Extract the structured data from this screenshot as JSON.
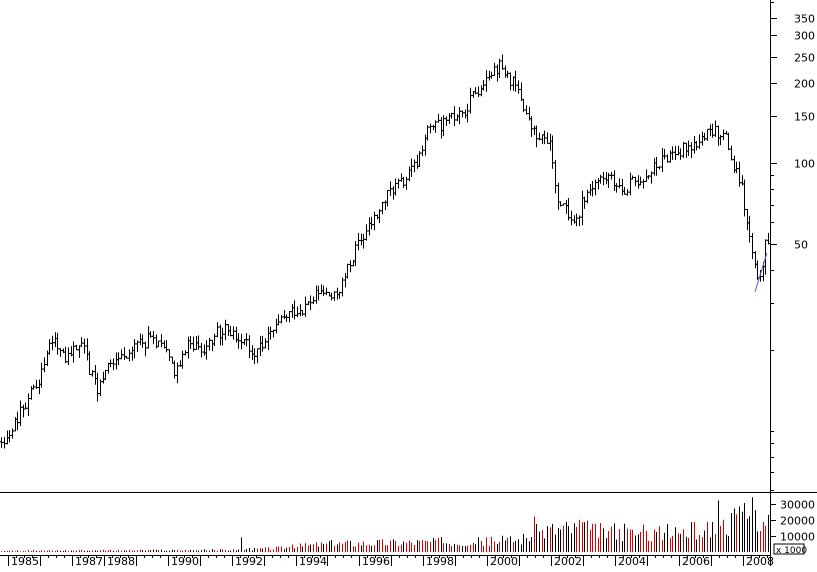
{
  "chart_data": [
    {
      "type": "ohlc",
      "panel": "price",
      "y_scale": "log",
      "ylim": [
        6,
        400
      ],
      "x_range": [
        1984.75,
        2008.85
      ],
      "y_tick_labels": [
        "350",
        "300",
        "250",
        "200",
        "150",
        "100",
        "50"
      ],
      "y_tick_values": [
        350,
        300,
        250,
        200,
        150,
        100,
        50
      ],
      "grid": false,
      "colors": {
        "bars": "#000000",
        "background": "#ffffff",
        "trendline": "#5a5ad0"
      },
      "anchors": {
        "x": [
          1984.75,
          1985.0,
          1985.5,
          1986.0,
          1986.4,
          1986.8,
          1987.0,
          1987.3,
          1987.6,
          1987.8,
          1988.0,
          1988.5,
          1989.0,
          1989.5,
          1989.9,
          1990.2,
          1990.5,
          1990.7,
          1991.0,
          1991.5,
          1991.9,
          1992.3,
          1992.7,
          1993.0,
          1993.5,
          1993.9,
          1994.3,
          1994.8,
          1995.2,
          1995.5,
          1995.9,
          1996.2,
          1996.6,
          1997.0,
          1997.4,
          1997.8,
          1998.1,
          1998.5,
          1998.9,
          1999.3,
          1999.7,
          2000.0,
          2000.4,
          2000.7,
          2001.0,
          2001.3,
          2001.6,
          2001.9,
          2002.2,
          2002.5,
          2002.8,
          2003.0,
          2003.4,
          2003.8,
          2004.2,
          2004.6,
          2005.0,
          2005.4,
          2005.8,
          2006.2,
          2006.6,
          2007.0,
          2007.3,
          2007.5,
          2007.7,
          2007.9,
          2008.0,
          2008.1,
          2008.3,
          2008.45,
          2008.6,
          2008.75
        ],
        "close": [
          8.5,
          9.5,
          12.5,
          16,
          22,
          19,
          20,
          22,
          16,
          14,
          17,
          19,
          21,
          22,
          20,
          17,
          19,
          22,
          20,
          23,
          24,
          22,
          20,
          21,
          25,
          28,
          29,
          33,
          31,
          36,
          48,
          55,
          65,
          80,
          85,
          100,
          130,
          140,
          145,
          160,
          190,
          220,
          230,
          205,
          180,
          140,
          120,
          125,
          75,
          65,
          60,
          75,
          85,
          88,
          80,
          85,
          90,
          100,
          110,
          115,
          120,
          130,
          130,
          120,
          95,
          85,
          75,
          60,
          45,
          35,
          42,
          52
        ]
      }
    },
    {
      "type": "bar",
      "panel": "volume",
      "y_tick_labels": [
        "30000",
        "20000",
        "10000"
      ],
      "y_tick_values": [
        30000,
        20000,
        10000
      ],
      "unit_label": "x 1000",
      "ylim": [
        0,
        36000
      ],
      "colors": {
        "up": "#d60000",
        "down": "#000000"
      },
      "anchors": {
        "x": [
          1984.75,
          1986.0,
          1988.0,
          1990.0,
          1992.0,
          1993.5,
          1994.5,
          1995.5,
          1997.0,
          1998.5,
          2000.0,
          2001.0,
          2001.8,
          2002.5,
          2003.5,
          2004.5,
          2005.5,
          2006.5,
          2007.2,
          2007.8,
          2008.2,
          2008.5,
          2008.75
        ],
        "volume": [
          600,
          900,
          1000,
          1100,
          1300,
          2500,
          4500,
          5500,
          6000,
          6500,
          6500,
          8000,
          14000,
          15000,
          13000,
          12000,
          12000,
          13000,
          15000,
          20000,
          22000,
          22000,
          20000
        ]
      },
      "spikes": [
        {
          "x": 1992.3,
          "volume": 9000
        },
        {
          "x": 2001.45,
          "volume": 22000
        },
        {
          "x": 2002.9,
          "volume": 20000
        },
        {
          "x": 2007.2,
          "volume": 32000
        },
        {
          "x": 2007.95,
          "volume": 25000
        },
        {
          "x": 2008.25,
          "volume": 34000
        },
        {
          "x": 2008.4,
          "volume": 26000
        }
      ]
    }
  ],
  "x_axis": {
    "labels": [
      "1985",
      "1987",
      "1988",
      "1990",
      "1992",
      "1994",
      "1996",
      "1998",
      "2000",
      "2002",
      "2004",
      "2006",
      "2008"
    ],
    "values": [
      1985,
      1987,
      1988,
      1990,
      1992,
      1994,
      1996,
      1998,
      2000,
      2002,
      2004,
      2006,
      2008
    ]
  }
}
